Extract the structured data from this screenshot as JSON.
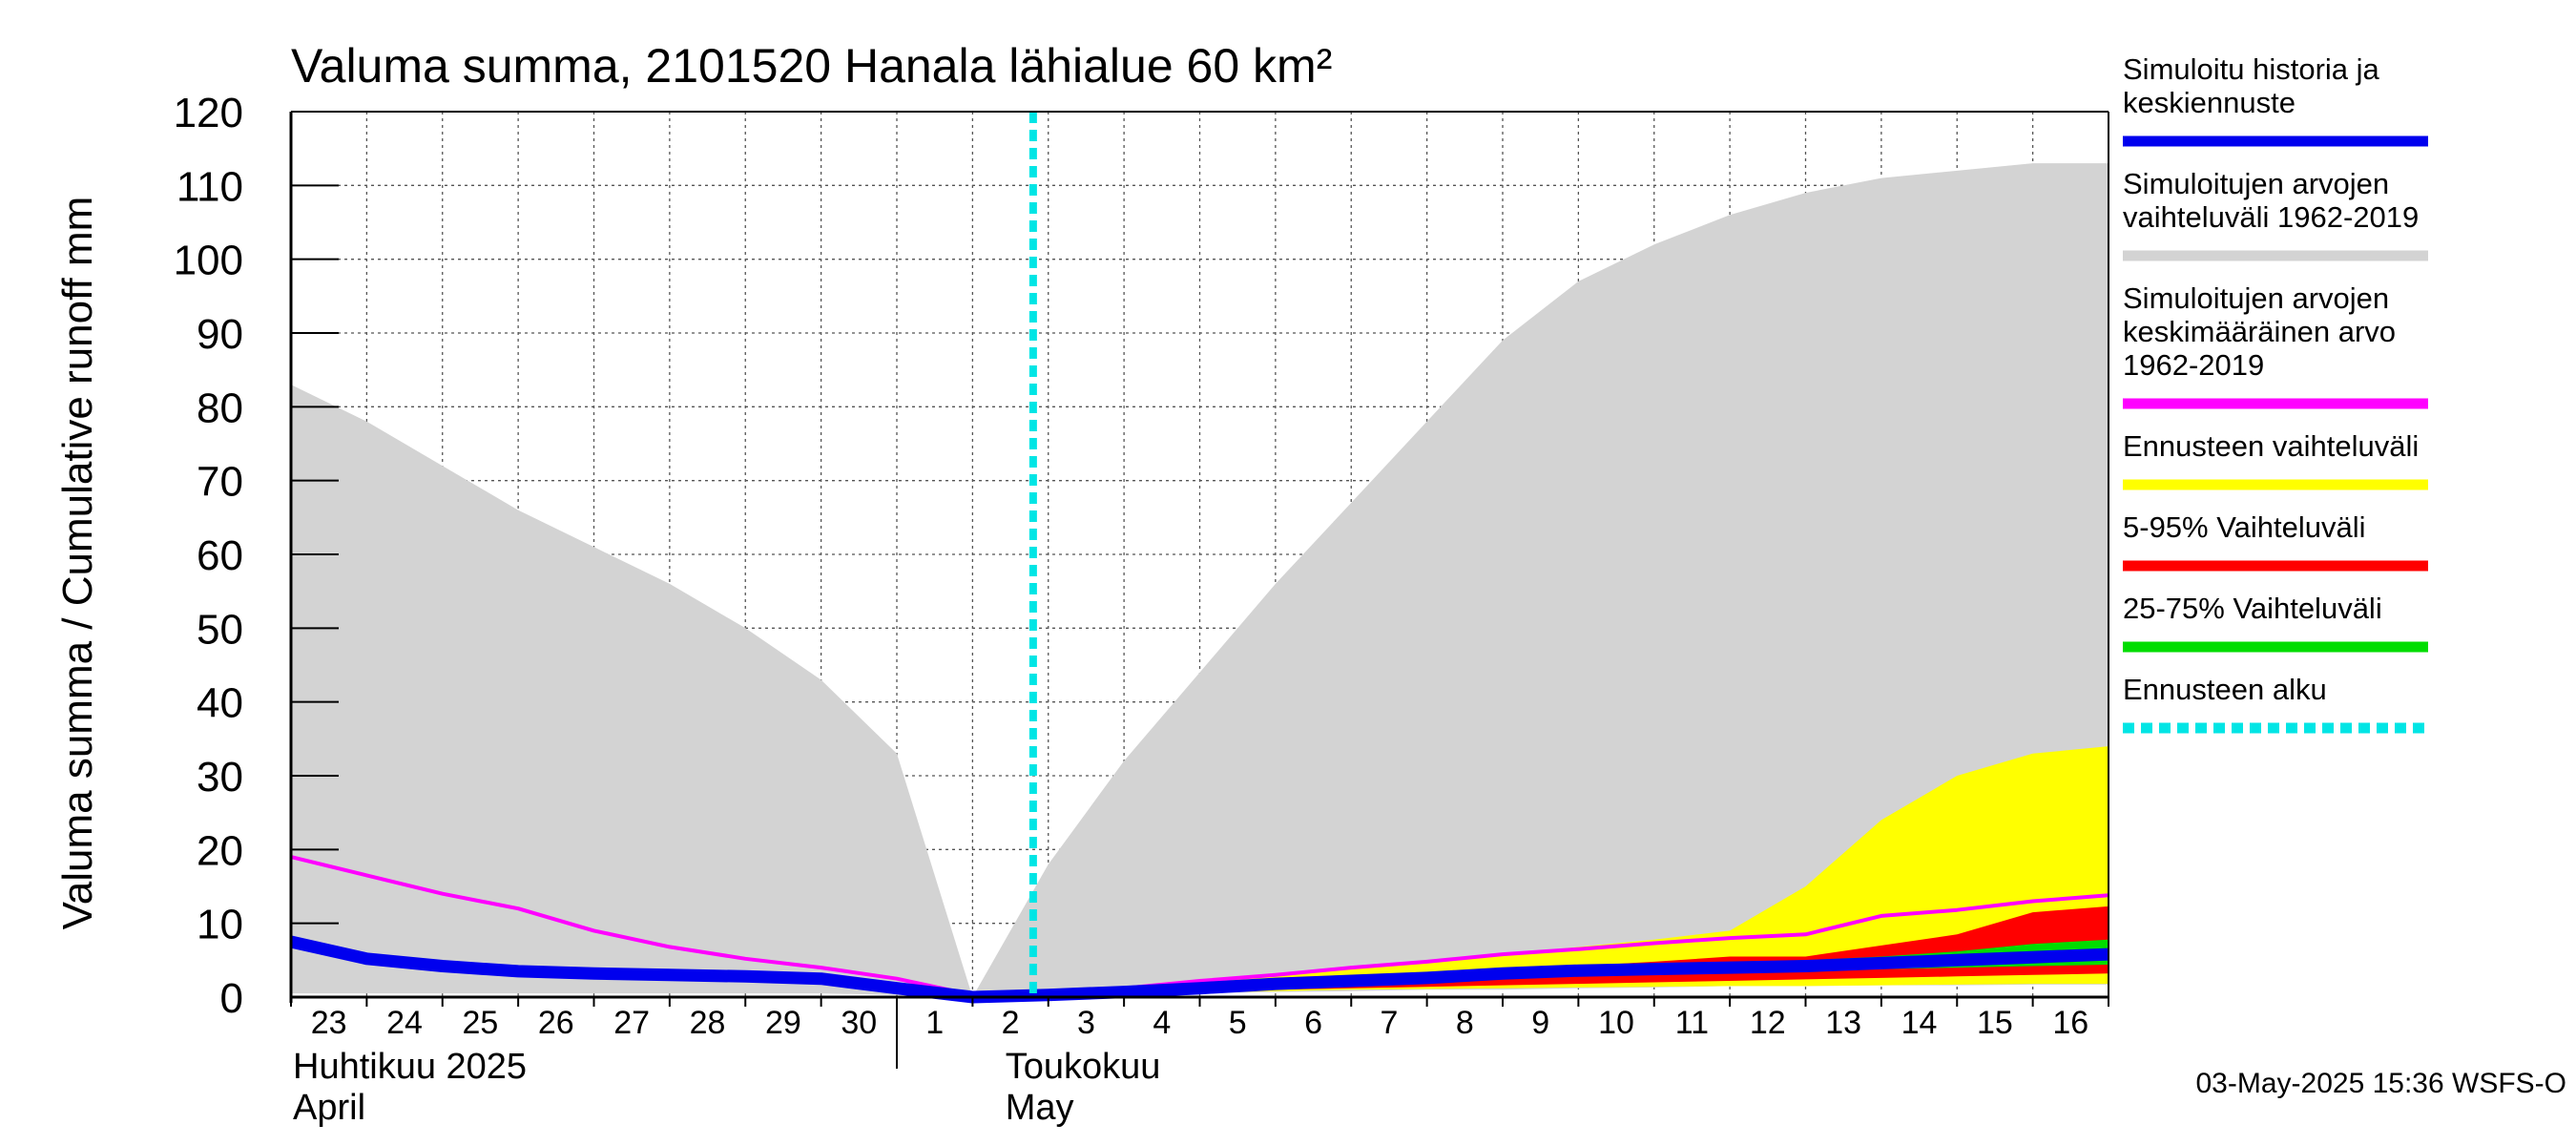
{
  "chart_data": {
    "type": "area",
    "title": "Valuma summa, 2101520 Hanala lähialue 60 km²",
    "ylabel": "Valuma summa / Cumulative runoff    mm",
    "ylim": [
      0,
      120
    ],
    "yticks": [
      0,
      10,
      20,
      30,
      40,
      50,
      60,
      70,
      80,
      90,
      100,
      110,
      120
    ],
    "grid": true,
    "legend_position": "right",
    "x_start": "2025-04-23",
    "x_end": "2025-05-16",
    "forecast_start": "2025-05-02",
    "day_labels": [
      "23",
      "24",
      "25",
      "26",
      "27",
      "28",
      "29",
      "30",
      "1",
      "2",
      "3",
      "4",
      "5",
      "6",
      "7",
      "8",
      "9",
      "10",
      "11",
      "12",
      "13",
      "14",
      "15",
      "16"
    ],
    "month_labels": [
      {
        "fi": "Huhtikuu  2025",
        "en": "April"
      },
      {
        "fi": "Toukokuu",
        "en": "May"
      }
    ],
    "x": [
      "2025-04-23",
      "2025-04-24",
      "2025-04-25",
      "2025-04-26",
      "2025-04-27",
      "2025-04-28",
      "2025-04-29",
      "2025-04-30",
      "2025-05-01",
      "2025-05-02",
      "2025-05-03",
      "2025-05-04",
      "2025-05-05",
      "2025-05-06",
      "2025-05-07",
      "2025-05-08",
      "2025-05-09",
      "2025-05-10",
      "2025-05-11",
      "2025-05-12",
      "2025-05-13",
      "2025-05-14",
      "2025-05-15",
      "2025-05-16",
      "2025-05-17"
    ],
    "series": [
      {
        "name": "Simuloitujen arvojen vaihteluväli 1962-2019",
        "kind": "band",
        "color": "#d3d3d3",
        "lower": [
          0.5,
          0.5,
          0.5,
          0.5,
          0.5,
          0.5,
          0.5,
          0.5,
          0.3,
          0,
          0.2,
          0.3,
          0.5,
          0.7,
          0.8,
          1,
          1,
          1.2,
          1.3,
          1.5,
          1.5,
          1.6,
          1.6,
          1.7,
          1.7
        ],
        "upper": [
          83,
          78,
          72,
          66,
          61,
          56,
          50,
          43,
          33,
          0,
          18,
          32,
          44,
          56,
          67,
          78,
          89,
          97,
          102,
          106,
          109,
          111,
          112,
          113,
          113
        ]
      },
      {
        "name": "Ennusteen vaihteluväli",
        "kind": "band",
        "color": "#ffff00",
        "lower": [
          null,
          null,
          null,
          null,
          null,
          null,
          null,
          null,
          null,
          0,
          0.2,
          0.4,
          0.6,
          0.8,
          1,
          1.1,
          1.2,
          1.3,
          1.4,
          1.5,
          1.5,
          1.6,
          1.7,
          1.8,
          1.8
        ],
        "upper": [
          null,
          null,
          null,
          null,
          null,
          null,
          null,
          null,
          null,
          0,
          0.5,
          1.2,
          2,
          2.8,
          3.8,
          4.8,
          5.8,
          6.8,
          7.8,
          9,
          15,
          24,
          30,
          33,
          34
        ]
      },
      {
        "name": "5-95% Vaihteluväli",
        "kind": "band",
        "color": "#ff0000",
        "lower": [
          null,
          null,
          null,
          null,
          null,
          null,
          null,
          null,
          null,
          0,
          0.3,
          0.5,
          0.8,
          1,
          1.2,
          1.4,
          1.6,
          1.8,
          2,
          2.2,
          2.4,
          2.6,
          2.8,
          3,
          3.2
        ],
        "upper": [
          null,
          null,
          null,
          null,
          null,
          null,
          null,
          null,
          null,
          0,
          0.4,
          0.8,
          1.2,
          1.8,
          2.4,
          3,
          3.6,
          4.2,
          4.8,
          5.5,
          5.5,
          7,
          8.5,
          11.5,
          12.3
        ]
      },
      {
        "name": "25-75% Vaihteluväli",
        "kind": "band",
        "color": "#00dd00",
        "lower": [
          null,
          null,
          null,
          null,
          null,
          null,
          null,
          null,
          null,
          0,
          0.4,
          0.7,
          1,
          1.4,
          1.8,
          2.2,
          2.6,
          3,
          3.2,
          3.4,
          3.5,
          3.8,
          4,
          4.2,
          4.4
        ],
        "upper": [
          null,
          null,
          null,
          null,
          null,
          null,
          null,
          null,
          null,
          0,
          0.5,
          0.9,
          1.4,
          2,
          2.6,
          3.2,
          3.8,
          4.2,
          4.5,
          4.8,
          5,
          5.5,
          6.2,
          7.2,
          7.8
        ]
      },
      {
        "name": "Simuloitujen arvojen keskimääräinen arvo 1962-2019",
        "kind": "line",
        "color": "#ff00ff",
        "values": [
          19,
          16.5,
          14,
          12,
          9,
          6.8,
          5.2,
          4,
          2.5,
          0.3,
          0.6,
          1.2,
          2.2,
          3,
          4,
          4.8,
          5.8,
          6.5,
          7.3,
          8,
          8.5,
          11,
          11.8,
          13,
          13.8
        ]
      },
      {
        "name": "Simuloitu historia ja keskiennuste",
        "kind": "line",
        "color": "#0000ee",
        "values": [
          7.5,
          5.2,
          4.2,
          3.5,
          3.2,
          3.0,
          2.8,
          2.5,
          1.2,
          0,
          0.3,
          0.7,
          1.2,
          1.8,
          2.2,
          2.6,
          3.2,
          3.6,
          3.8,
          4,
          4.2,
          4.6,
          5,
          5.4,
          5.8
        ]
      }
    ],
    "legend": [
      {
        "label": "Simuloitu historia ja keskiennuste",
        "color": "#0000ee",
        "style": "solid"
      },
      {
        "label": "Simuloitujen arvojen vaihteluväli 1962-2019",
        "color": "#d3d3d3",
        "style": "solid"
      },
      {
        "label": "Simuloitujen arvojen keskimääräinen arvo  1962-2019",
        "color": "#ff00ff",
        "style": "solid"
      },
      {
        "label": "Ennusteen vaihteluväli",
        "color": "#ffff00",
        "style": "solid"
      },
      {
        "label": "5-95% Vaihteluväli",
        "color": "#ff0000",
        "style": "solid"
      },
      {
        "label": "25-75% Vaihteluväli",
        "color": "#00dd00",
        "style": "solid"
      },
      {
        "label": "Ennusteen alku",
        "color": "#00e5e5",
        "style": "dashed"
      }
    ],
    "legend_lines": [
      [
        "Simuloitu historia ja",
        "keskiennuste"
      ],
      [
        "Simuloitujen arvojen",
        "vaihteluväli 1962-2019"
      ],
      [
        "Simuloitujen arvojen",
        "keskimääräinen arvo",
        "   1962-2019"
      ],
      [
        "Ennusteen vaihteluväli"
      ],
      [
        "5-95% Vaihteluväli"
      ],
      [
        "25-75% Vaihteluväli"
      ],
      [
        "Ennusteen alku"
      ]
    ],
    "timestamp": "03-May-2025 15:36 WSFS-O"
  }
}
